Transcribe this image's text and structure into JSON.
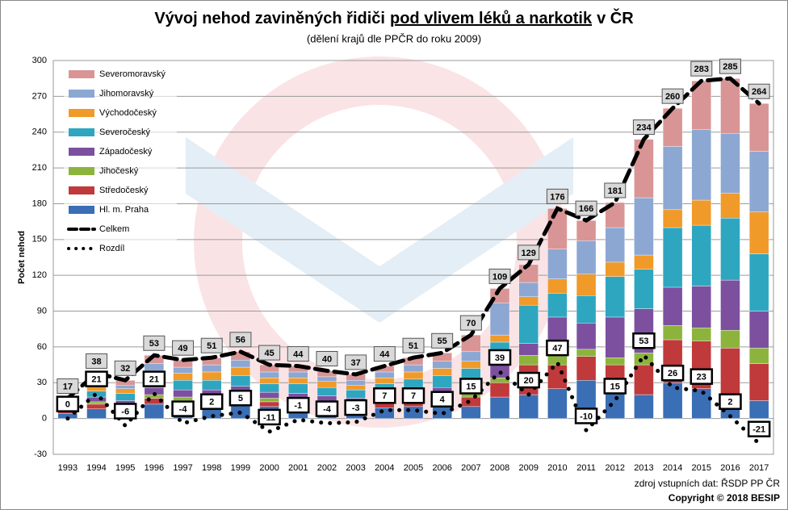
{
  "chart_data": {
    "type": "bar",
    "title": [
      "Vývoj nehod zaviněných řidiči",
      "pod vlivem léků a narkotik",
      "v ČR"
    ],
    "subtitle": "(dělení krajů dle PPČR do roku 2009)",
    "y_label": "Počet nehod",
    "source": "zdroj vstupních dat: ŘSDP PP ČR",
    "copyright": "Copyright © 2018 BESIP",
    "categories": [
      "1993",
      "1994",
      "1995",
      "1996",
      "1997",
      "1998",
      "1999",
      "2000",
      "2001",
      "2002",
      "2003",
      "2004",
      "2005",
      "2006",
      "2007",
      "2008",
      "2009",
      "2010",
      "2011",
      "2012",
      "2013",
      "2014",
      "2015",
      "2016",
      "2017"
    ],
    "stacked": true,
    "series": [
      {
        "name": "Hl. m. Praha",
        "color": "#3a6eb5",
        "values": [
          4,
          8,
          6,
          12,
          10,
          10,
          12,
          10,
          9,
          8,
          7,
          9,
          10,
          11,
          10,
          18,
          20,
          25,
          32,
          30,
          20,
          30,
          25,
          10,
          15
        ]
      },
      {
        "name": "Středočeský",
        "color": "#c0393b",
        "values": [
          2,
          4,
          3,
          5,
          5,
          5,
          6,
          4,
          4,
          4,
          4,
          4,
          5,
          6,
          8,
          12,
          25,
          20,
          20,
          15,
          25,
          36,
          40,
          49,
          31
        ]
      },
      {
        "name": "Jihočeský",
        "color": "#8cb43c",
        "values": [
          1,
          2,
          2,
          3,
          3,
          3,
          3,
          3,
          3,
          2,
          2,
          3,
          3,
          3,
          4,
          4,
          8,
          8,
          6,
          6,
          10,
          12,
          11,
          15,
          13
        ]
      },
      {
        "name": "Západočeský",
        "color": "#7c509f",
        "values": [
          2,
          4,
          4,
          6,
          6,
          6,
          6,
          5,
          5,
          5,
          4,
          5,
          6,
          6,
          8,
          12,
          10,
          32,
          22,
          34,
          37,
          32,
          35,
          42,
          31
        ]
      },
      {
        "name": "Severočeský",
        "color": "#2fa6c0",
        "values": [
          3,
          5,
          6,
          8,
          8,
          8,
          9,
          7,
          8,
          7,
          7,
          8,
          9,
          10,
          12,
          18,
          32,
          20,
          23,
          34,
          33,
          50,
          51,
          52,
          48
        ]
      },
      {
        "name": "Východočeský",
        "color": "#f09a2a",
        "values": [
          1,
          6,
          4,
          6,
          6,
          7,
          7,
          5,
          5,
          5,
          4,
          5,
          6,
          6,
          6,
          6,
          7,
          12,
          18,
          12,
          12,
          15,
          21,
          21,
          35
        ]
      },
      {
        "name": "Jihomoravský",
        "color": "#8da7d3",
        "values": [
          2,
          4,
          3,
          6,
          5,
          6,
          6,
          5,
          5,
          4,
          4,
          5,
          6,
          6,
          8,
          27,
          12,
          25,
          28,
          29,
          48,
          53,
          59,
          50,
          51
        ]
      },
      {
        "name": "Severomoravský",
        "color": "#d99595",
        "values": [
          2,
          5,
          4,
          7,
          6,
          6,
          7,
          6,
          5,
          5,
          5,
          5,
          6,
          7,
          14,
          12,
          15,
          34,
          17,
          21,
          49,
          32,
          41,
          46,
          40
        ]
      }
    ],
    "lines": [
      {
        "name": "Celkem",
        "color": "#000000",
        "style": "dashed",
        "values": [
          17,
          38,
          32,
          53,
          49,
          51,
          56,
          45,
          44,
          40,
          37,
          44,
          51,
          55,
          70,
          109,
          129,
          176,
          166,
          181,
          234,
          260,
          283,
          285,
          264
        ]
      },
      {
        "name": "Rozdíl",
        "color": "#000000",
        "style": "dotted",
        "values": [
          0,
          21,
          -6,
          21,
          -4,
          2,
          5,
          -11,
          -1,
          -4,
          -3,
          7,
          7,
          4,
          15,
          39,
          20,
          47,
          -10,
          15,
          53,
          26,
          23,
          2,
          -21
        ]
      }
    ],
    "ylim": [
      -30,
      300
    ],
    "yticks": [
      -30,
      0,
      30,
      60,
      90,
      120,
      150,
      180,
      210,
      240,
      270,
      300
    ],
    "grid": true,
    "legend": "top-left"
  }
}
